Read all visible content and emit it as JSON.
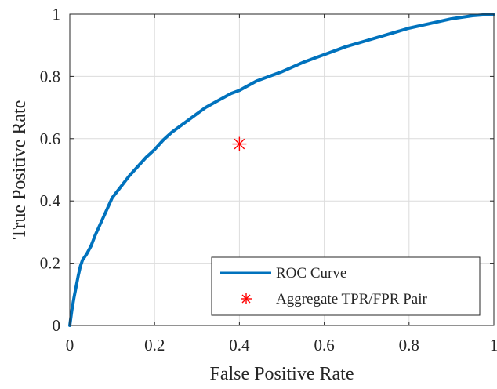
{
  "chart_data": {
    "type": "line",
    "xlabel": "False Positive Rate",
    "ylabel": "True Positive Rate",
    "xlim": [
      0,
      1
    ],
    "ylim": [
      0,
      1
    ],
    "xticks": [
      0,
      0.2,
      0.4,
      0.6,
      0.8,
      1
    ],
    "yticks": [
      0,
      0.2,
      0.4,
      0.6,
      0.8,
      1
    ],
    "xtick_labels": [
      "0",
      "0.2",
      "0.4",
      "0.6",
      "0.8",
      "1"
    ],
    "ytick_labels": [
      "0",
      "0.2",
      "0.4",
      "0.6",
      "0.8",
      "1"
    ],
    "grid": true,
    "legend_position": "bottom-right",
    "series": [
      {
        "name": "ROC Curve",
        "type": "line",
        "color": "#0072BD",
        "x": [
          0,
          0.002,
          0.005,
          0.01,
          0.015,
          0.02,
          0.025,
          0.03,
          0.04,
          0.05,
          0.06,
          0.07,
          0.08,
          0.09,
          0.1,
          0.12,
          0.14,
          0.16,
          0.18,
          0.2,
          0.22,
          0.24,
          0.26,
          0.28,
          0.3,
          0.32,
          0.34,
          0.36,
          0.38,
          0.4,
          0.42,
          0.44,
          0.46,
          0.48,
          0.5,
          0.55,
          0.6,
          0.65,
          0.7,
          0.75,
          0.8,
          0.85,
          0.9,
          0.95,
          0.98,
          1
        ],
        "y": [
          0,
          0.02,
          0.05,
          0.09,
          0.125,
          0.16,
          0.19,
          0.21,
          0.23,
          0.255,
          0.29,
          0.32,
          0.35,
          0.38,
          0.41,
          0.445,
          0.48,
          0.51,
          0.54,
          0.565,
          0.595,
          0.62,
          0.64,
          0.66,
          0.68,
          0.7,
          0.715,
          0.73,
          0.745,
          0.755,
          0.77,
          0.785,
          0.795,
          0.805,
          0.815,
          0.845,
          0.87,
          0.895,
          0.915,
          0.935,
          0.955,
          0.97,
          0.985,
          0.995,
          0.998,
          1
        ]
      },
      {
        "name": "Aggregate TPR/FPR Pair",
        "type": "scatter",
        "marker": "asterisk",
        "color": "#FF0000",
        "x": [
          0.4
        ],
        "y": [
          0.583
        ]
      }
    ]
  }
}
